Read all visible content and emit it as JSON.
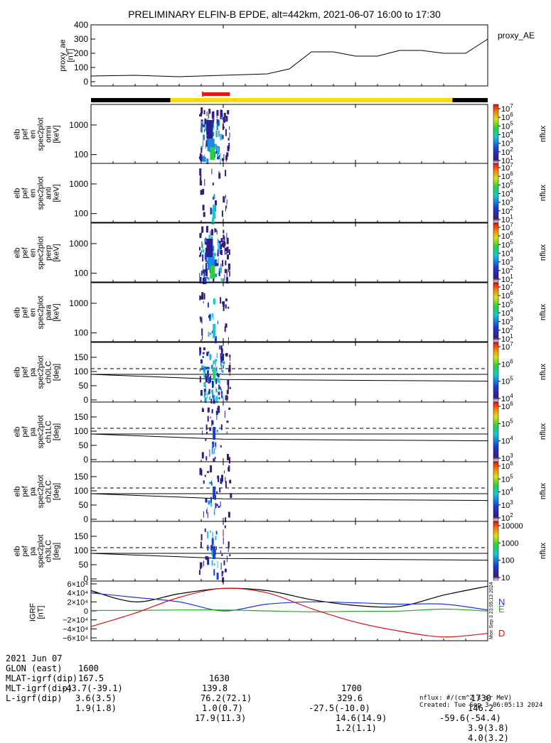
{
  "title": "PRELIMINARY ELFIN-B EPDE, alt=442km, 2021-06-07 16:00 to 17:30",
  "colors": {
    "yellow": "#ffdd00",
    "red": "#ee1111",
    "black": "#000000",
    "compN": "#2233dd",
    "compE": "#22aa22",
    "compD": "#dd1111"
  },
  "chart_data": {
    "type": "spectrogram-stack",
    "time_range": [
      "16:00",
      "17:30"
    ],
    "time_ticks": [
      "1600",
      "1630",
      "1700",
      "1730"
    ],
    "ae_panel": {
      "label": "proxy_ae\n[nT]",
      "ylabel_lines": [
        "proxy_ae",
        "[nT]"
      ],
      "legend": "proxy_AE",
      "ylim": [
        0,
        400
      ],
      "yticks": [
        "400",
        "300",
        "200",
        "100",
        "0"
      ],
      "x_minutes": [
        0,
        10,
        20,
        30,
        40,
        45,
        50,
        55,
        60,
        65,
        70,
        75,
        80,
        85,
        90
      ],
      "values": [
        40,
        45,
        35,
        45,
        55,
        90,
        210,
        210,
        180,
        180,
        220,
        220,
        200,
        200,
        300
      ]
    },
    "status_bar": {
      "black_until_min": 18,
      "yellow_until_min": 82,
      "science_zone": [
        25.5,
        31.5
      ]
    },
    "energy_panels": [
      {
        "labels": [
          "elb",
          "pef",
          "en",
          "spec2plot",
          "omni",
          "[keV]"
        ],
        "yticks": [
          "1000",
          "100"
        ]
      },
      {
        "labels": [
          "elb",
          "pef",
          "en",
          "spec2plot",
          "anti",
          "[keV]"
        ],
        "yticks": [
          "1000",
          "100"
        ]
      },
      {
        "labels": [
          "elb",
          "pef",
          "en",
          "spec2plot",
          "perp",
          "[keV]"
        ],
        "yticks": [
          "1000",
          "100"
        ]
      },
      {
        "labels": [
          "elb",
          "pef",
          "en",
          "spec2plot",
          "para",
          "[keV]"
        ],
        "yticks": [
          "1000",
          "100"
        ]
      }
    ],
    "pitch_panels": [
      {
        "labels": [
          "elb",
          "pef",
          "pa",
          "spec2plot",
          "ch0LC",
          "[deg]"
        ],
        "yticks": [
          "150",
          "100",
          "50",
          "0"
        ]
      },
      {
        "labels": [
          "elb",
          "pef",
          "pa",
          "spec2plot",
          "ch1LC",
          "[deg]"
        ],
        "yticks": [
          "150",
          "100",
          "50",
          "0"
        ]
      },
      {
        "labels": [
          "elb",
          "pef",
          "pa",
          "spec2plot",
          "ch2LC",
          "[deg]"
        ],
        "yticks": [
          "150",
          "100",
          "50",
          "0"
        ]
      },
      {
        "labels": [
          "elb",
          "pef",
          "pa",
          "spec2plot",
          "ch3LC",
          "[deg]"
        ],
        "yticks": [
          "150",
          "100",
          "50",
          "0"
        ]
      }
    ],
    "colorbars": [
      {
        "ticks": [
          "10^7",
          "10^6",
          "10^5",
          "10^4",
          "10^3",
          "10^2",
          "10^1"
        ],
        "unit": "nflux"
      },
      {
        "ticks": [
          "10^7",
          "10^6",
          "10^5",
          "10^4",
          "10^3",
          "10^2",
          "10^1"
        ],
        "unit": "nflux"
      },
      {
        "ticks": [
          "10^7",
          "10^6",
          "10^5",
          "10^4",
          "10^3",
          "10^2",
          "10^1"
        ],
        "unit": "nflux"
      },
      {
        "ticks": [
          "10^7",
          "10^6",
          "10^5",
          "10^4",
          "10^3",
          "10^2",
          "10^1"
        ],
        "unit": "nflux"
      },
      {
        "ticks": [
          "10^7",
          "10^6",
          "10^5",
          "10^4"
        ],
        "unit": "nflux"
      },
      {
        "ticks": [
          "10^6",
          "10^5",
          "10^4",
          "10^3"
        ],
        "unit": "nflux"
      },
      {
        "ticks": [
          "10^6",
          "10^5",
          "10^4",
          "10^3",
          "10^2"
        ],
        "unit": "nflux"
      },
      {
        "ticks": [
          "10000",
          "1000",
          "100",
          "10"
        ],
        "unit": "nflux"
      }
    ],
    "igrf_panel": {
      "ylabel_lines": [
        "IGRF",
        "[nT]"
      ],
      "ylim": [
        -60000,
        60000
      ],
      "yticks": [
        "6×10⁴",
        "4×10⁴",
        "2×10⁴",
        "0",
        "−2×10⁴",
        "−4×10⁴",
        "−6×10⁴"
      ],
      "legend": [
        "N",
        "E",
        "D"
      ],
      "side_text": "Mon Sep  3 23:05:13 2024",
      "x_minutes": [
        0,
        10,
        20,
        30,
        40,
        50,
        60,
        70,
        80,
        90
      ],
      "series": [
        {
          "name": "total",
          "color": "#000000",
          "values": [
            45000,
            20000,
            38000,
            50000,
            45000,
            25000,
            12000,
            10000,
            35000,
            55000
          ]
        },
        {
          "name": "N",
          "color": "#2233dd",
          "values": [
            40000,
            30000,
            20000,
            0,
            15000,
            20000,
            18000,
            15000,
            15000,
            2000
          ]
        },
        {
          "name": "E",
          "color": "#22aa22",
          "values": [
            1000,
            1000,
            2000,
            2000,
            0,
            -2000,
            -1000,
            -500,
            4000,
            -500
          ]
        },
        {
          "name": "D",
          "color": "#dd1111",
          "values": [
            -35000,
            -5000,
            30000,
            50000,
            40000,
            5000,
            -25000,
            -45000,
            -58000,
            -50000
          ]
        }
      ]
    }
  },
  "footer": {
    "rows": [
      [
        "2021 Jun 07",
        "1600",
        "1630",
        "1700",
        "1730"
      ],
      [
        "GLON (east)",
        "167.5",
        "139.8",
        "329.6",
        "146.2"
      ],
      [
        "MLAT-igrf(dip)",
        "-43.7(-39.1)",
        "76.2(72.1)",
        "-27.5(-10.0)",
        "-59.6(-54.4)"
      ],
      [
        "MLT-igrf(dip)",
        "3.6(3.5)",
        "1.0(0.7)",
        "14.6(14.9)",
        "3.9(3.8)"
      ],
      [
        "L-igrf(dip)",
        "1.9(1.8)",
        "17.9(11.3)",
        "1.2(1.1)",
        "4.0(3.2)"
      ]
    ],
    "unit_note": "nflux: #/(cm^2 s sr MeV)",
    "created": "Created: Tue Sep  3 06:05:13 2024"
  }
}
